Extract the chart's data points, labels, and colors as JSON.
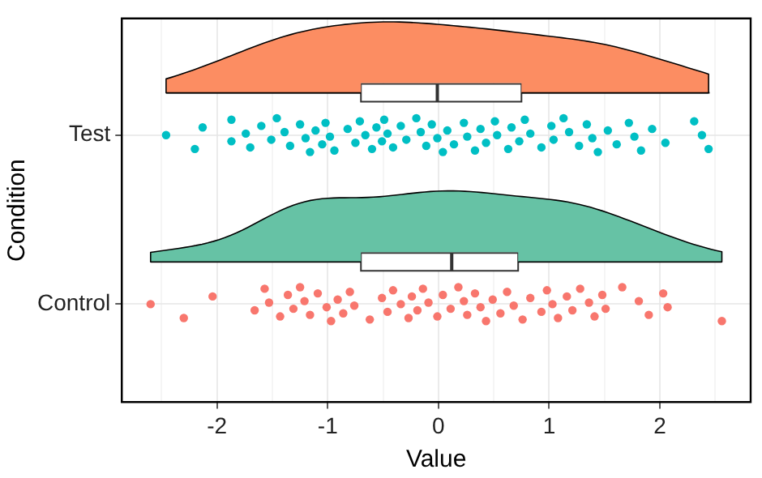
{
  "chart_data": {
    "type": "box",
    "orientation": "horizontal",
    "xlabel": "Value",
    "ylabel": "Condition",
    "categories": [
      "Test",
      "Control"
    ],
    "xlim": [
      -2.86,
      2.82
    ],
    "xticks": [
      {
        "value": -2.5,
        "label": null
      },
      -2,
      {
        "value": -1.5,
        "label": null
      },
      -1,
      {
        "value": -0.5,
        "label": null
      },
      0,
      {
        "value": 0.5,
        "label": null
      },
      1,
      {
        "value": 1.5,
        "label": null
      },
      2,
      {
        "value": 2.5,
        "label": null
      }
    ],
    "grid": true,
    "marker": "circle",
    "boxes": [
      {
        "low": -2.46,
        "q1": -0.7,
        "median": -0.01,
        "q3": 0.75,
        "high": 2.45
      },
      {
        "low": -2.6,
        "q1": -0.7,
        "median": 0.12,
        "q3": 0.72,
        "high": 2.56
      }
    ],
    "series": [
      {
        "type": "scatter",
        "color": "#00bfc4",
        "x": [
          "Test",
          "Test",
          "Test",
          "Test",
          "Test",
          "Test",
          "Test",
          "Test",
          "Test",
          "Test",
          "Test",
          "Test",
          "Test",
          "Test",
          "Test",
          "Test",
          "Test",
          "Test",
          "Test",
          "Test",
          "Test",
          "Test",
          "Test",
          "Test",
          "Test",
          "Test",
          "Test",
          "Test",
          "Test",
          "Test",
          "Test",
          "Test",
          "Test",
          "Test",
          "Test",
          "Test",
          "Test",
          "Test",
          "Test",
          "Test",
          "Test",
          "Test",
          "Test",
          "Test",
          "Test",
          "Test",
          "Test",
          "Test",
          "Test",
          "Test",
          "Test",
          "Test",
          "Test",
          "Test",
          "Test",
          "Test",
          "Test",
          "Test",
          "Test",
          "Test",
          "Test",
          "Test",
          "Test",
          "Test",
          "Test",
          "Test",
          "Test",
          "Test",
          "Test",
          "Test",
          "Test"
        ],
        "values": [
          -2.46,
          -2.2,
          -2.13,
          -1.87,
          -1.87,
          -1.74,
          -1.7,
          -1.6,
          -1.51,
          -1.46,
          -1.39,
          -1.34,
          -1.25,
          -1.2,
          -1.16,
          -1.11,
          -1.05,
          -1.02,
          -0.98,
          -0.94,
          -0.82,
          -0.75,
          -0.71,
          -0.66,
          -0.6,
          -0.56,
          -0.51,
          -0.49,
          -0.46,
          -0.41,
          -0.34,
          -0.29,
          -0.2,
          -0.16,
          -0.11,
          -0.06,
          -0.01,
          0.04,
          0.08,
          0.14,
          0.23,
          0.26,
          0.33,
          0.38,
          0.43,
          0.51,
          0.53,
          0.63,
          0.66,
          0.73,
          0.78,
          0.83,
          0.93,
          1.02,
          1.04,
          1.13,
          1.18,
          1.27,
          1.34,
          1.39,
          1.44,
          1.53,
          1.61,
          1.72,
          1.77,
          1.83,
          1.93,
          2.05,
          2.31,
          2.38,
          2.44
        ]
      },
      {
        "type": "scatter",
        "color": "#f8766d",
        "x": [
          "Control",
          "Control",
          "Control",
          "Control",
          "Control",
          "Control",
          "Control",
          "Control",
          "Control",
          "Control",
          "Control",
          "Control",
          "Control",
          "Control",
          "Control",
          "Control",
          "Control",
          "Control",
          "Control",
          "Control",
          "Control",
          "Control",
          "Control",
          "Control",
          "Control",
          "Control",
          "Control",
          "Control",
          "Control",
          "Control",
          "Control",
          "Control",
          "Control",
          "Control",
          "Control",
          "Control",
          "Control",
          "Control",
          "Control",
          "Control",
          "Control",
          "Control",
          "Control",
          "Control",
          "Control",
          "Control",
          "Control",
          "Control",
          "Control",
          "Control",
          "Control",
          "Control",
          "Control",
          "Control",
          "Control",
          "Control",
          "Control",
          "Control",
          "Control",
          "Control",
          "Control"
        ],
        "values": [
          -2.6,
          -2.3,
          -2.04,
          -1.66,
          -1.57,
          -1.53,
          -1.43,
          -1.36,
          -1.31,
          -1.25,
          -1.21,
          -1.16,
          -1.09,
          -1.01,
          -0.97,
          -0.91,
          -0.86,
          -0.8,
          -0.76,
          -0.62,
          -0.51,
          -0.46,
          -0.41,
          -0.34,
          -0.27,
          -0.24,
          -0.19,
          -0.14,
          -0.09,
          -0.01,
          0.04,
          0.11,
          0.18,
          0.23,
          0.26,
          0.33,
          0.38,
          0.43,
          0.49,
          0.56,
          0.62,
          0.68,
          0.76,
          0.83,
          0.93,
          0.98,
          1.03,
          1.08,
          1.16,
          1.21,
          1.28,
          1.36,
          1.41,
          1.48,
          1.51,
          1.66,
          1.81,
          1.9,
          2.03,
          2.07,
          2.56
        ]
      }
    ]
  }
}
